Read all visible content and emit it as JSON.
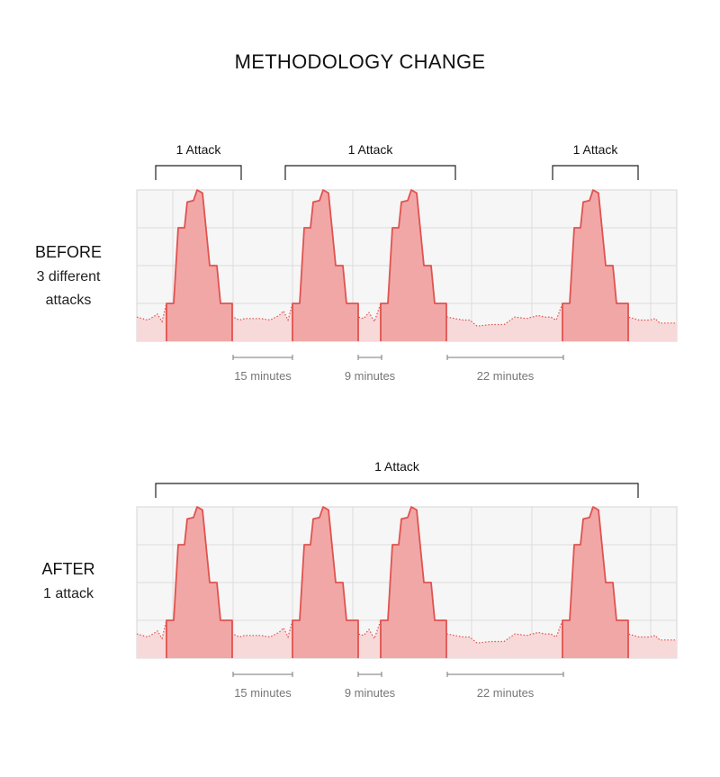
{
  "title": "METHODOLOGY CHANGE",
  "colors": {
    "peak_fill": "#f2a7a7",
    "peak_line": "#e0534f",
    "baseline_fill": "#f7d9d9",
    "panel_bg": "#f6f6f6",
    "grid": "#dcdcdc"
  },
  "sections": [
    {
      "id": "before",
      "name": "BEFORE",
      "subtitle_lines": [
        "3 different",
        "attacks"
      ],
      "brackets": [
        {
          "label": "1 Attack"
        },
        {
          "label": "1 Attack"
        },
        {
          "label": "1 Attack"
        }
      ],
      "gaps": [
        {
          "label": "15 minutes"
        },
        {
          "label": "9 minutes"
        },
        {
          "label": "22 minutes"
        }
      ]
    },
    {
      "id": "after",
      "name": "AFTER",
      "subtitle_lines": [
        "1 attack"
      ],
      "brackets": [
        {
          "label": "1 Attack"
        }
      ],
      "gaps": [
        {
          "label": "15 minutes"
        },
        {
          "label": "9 minutes"
        },
        {
          "label": "22 minutes"
        }
      ]
    }
  ]
}
